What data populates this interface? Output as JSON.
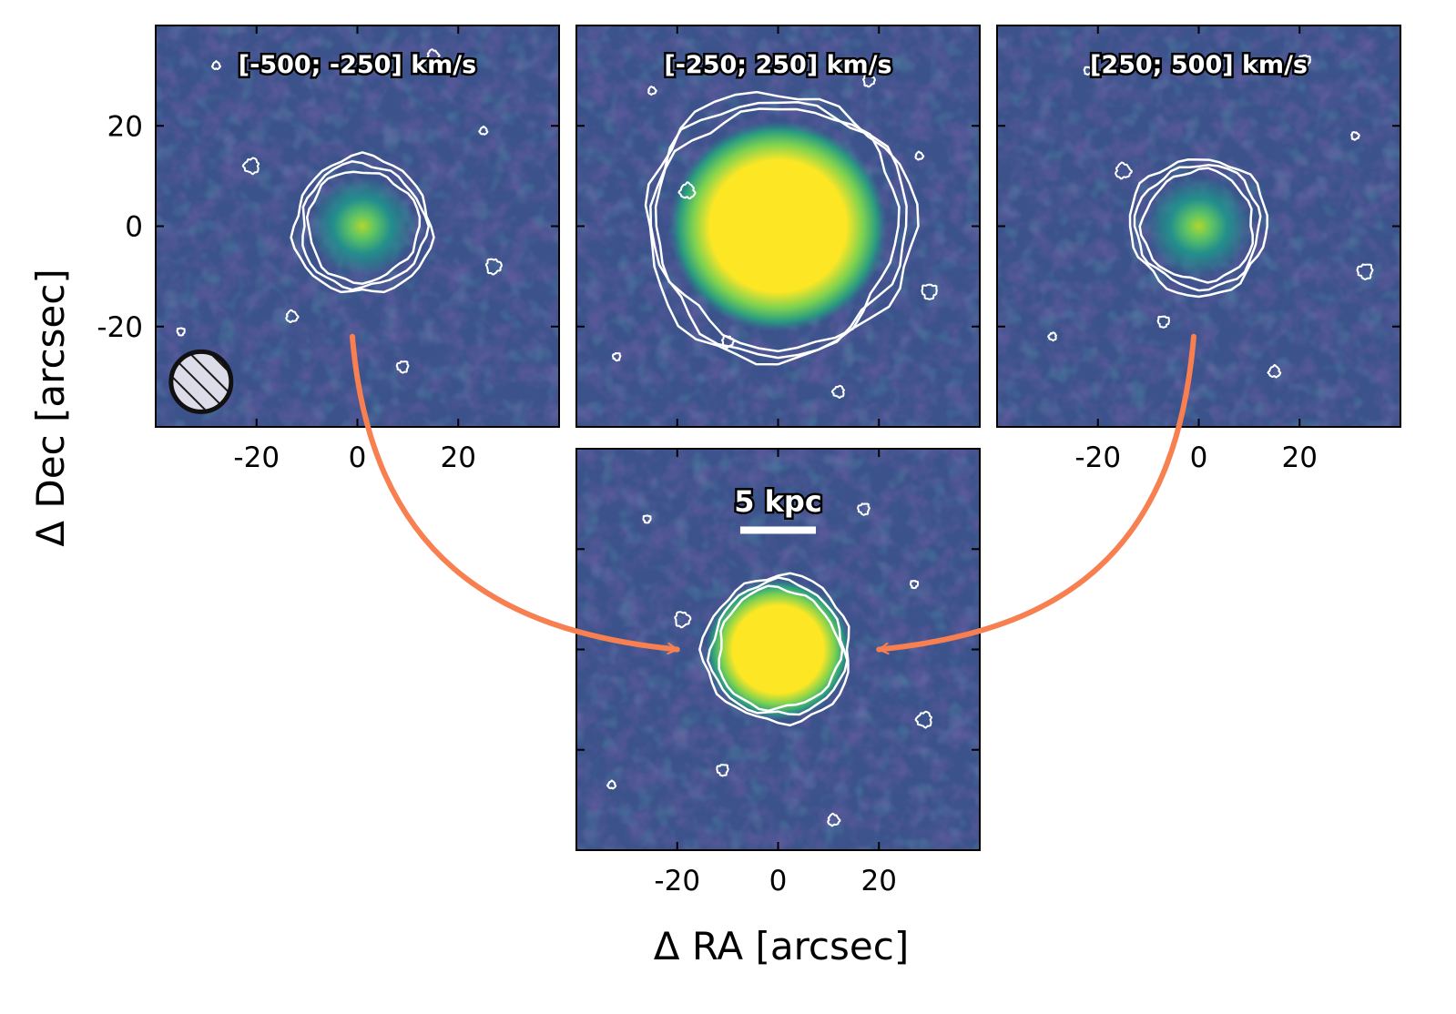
{
  "chart_data": {
    "type": "heatmap",
    "x_axis_title": "Δ RA [arcsec]",
    "y_axis_title": "Δ Dec [arcsec]",
    "xlim": [
      -40,
      40
    ],
    "ylim": [
      -40,
      40
    ],
    "x_ticks": [
      -20,
      0,
      20
    ],
    "y_ticks": [
      20,
      0,
      -20
    ],
    "x_tick_labels": [
      "-20",
      "0",
      "20"
    ],
    "y_tick_labels": [
      "20",
      "0",
      "-20"
    ],
    "colormap": "viridis",
    "contour_color": "#ffffff",
    "arrow_color": "#f77f50",
    "panels": [
      {
        "id": "blue",
        "title": "[-500; -250] km/s",
        "source_center": [
          1,
          0
        ],
        "core_radius": 8,
        "contour_radius": 11,
        "contour_levels": 3,
        "peak_brightness": 0.55,
        "saturated": false,
        "shows_beam": true
      },
      {
        "id": "center",
        "title": "[-250; 250] km/s",
        "source_center": [
          0,
          0
        ],
        "core_radius": 15,
        "contour_radius": 24,
        "contour_levels": 3,
        "peak_brightness": 1.0,
        "saturated": true
      },
      {
        "id": "red",
        "title": "[250; 500] km/s",
        "source_center": [
          0,
          0
        ],
        "core_radius": 8,
        "contour_radius": 11,
        "contour_levels": 3,
        "peak_brightness": 0.55,
        "saturated": false
      },
      {
        "id": "combined",
        "title": "",
        "source_center": [
          0,
          0
        ],
        "core_radius": 10,
        "contour_radius": 12,
        "contour_levels": 3,
        "peak_brightness": 0.95,
        "saturated": true,
        "shows_scalebar": true
      }
    ],
    "scalebar_label": "5 kpc",
    "arrows": [
      {
        "from": "blue",
        "to": "combined"
      },
      {
        "from": "red",
        "to": "combined"
      }
    ]
  }
}
